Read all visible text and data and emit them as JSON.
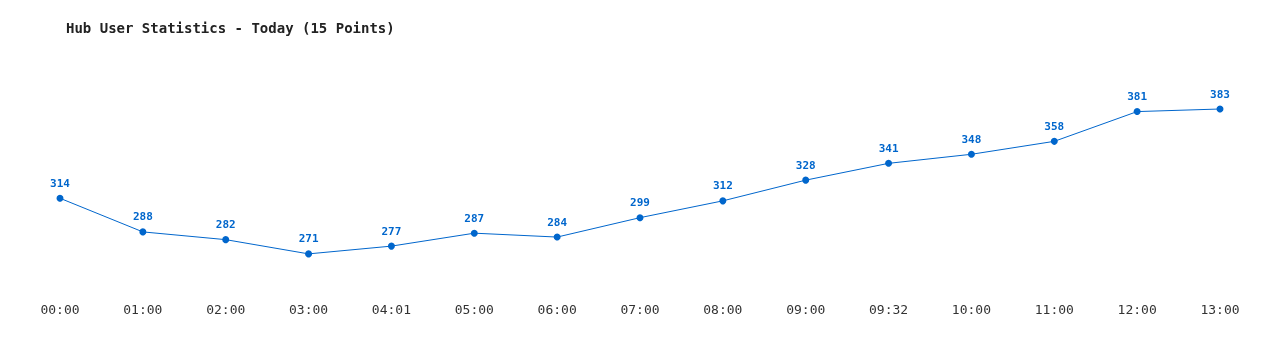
{
  "chart_data": {
    "type": "line",
    "title": "Hub User Statistics - Today (15 Points)",
    "categories": [
      "00:00",
      "01:00",
      "02:00",
      "03:00",
      "04:01",
      "05:00",
      "06:00",
      "07:00",
      "08:00",
      "09:00",
      "09:32",
      "10:00",
      "11:00",
      "12:00",
      "13:00"
    ],
    "series": [
      {
        "color": "#0066cc",
        "values": [
          314,
          288,
          282,
          271,
          277,
          287,
          284,
          299,
          312,
          328,
          341,
          348,
          358,
          381,
          383
        ]
      }
    ],
    "data_labels": true,
    "marker": "circle",
    "grid": false,
    "tick_labels": "x",
    "line_style": "solid"
  }
}
